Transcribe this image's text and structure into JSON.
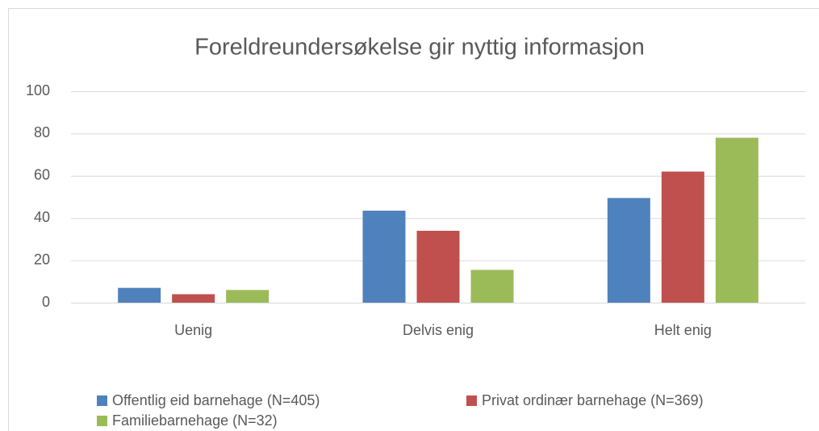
{
  "chart_data": {
    "type": "bar",
    "title": "Foreldreundersøkelse gir nyttig informasjon",
    "categories": [
      "Uenig",
      "Delvis enig",
      "Helt enig"
    ],
    "series": [
      {
        "name": "Offentlig eid barnehage (N=405)",
        "color": "#4f81bd",
        "values": [
          7,
          43.5,
          49.5
        ]
      },
      {
        "name": "Privat ordinær barnehage (N=369)",
        "color": "#c0504d",
        "values": [
          4,
          34,
          62
        ]
      },
      {
        "name": "Familiebarnehage (N=32)",
        "color": "#9bbb59",
        "values": [
          6,
          15.5,
          78
        ]
      }
    ],
    "ylim": [
      0,
      100
    ],
    "yticks": [
      0,
      20,
      40,
      60,
      80,
      100
    ],
    "grid": true
  }
}
